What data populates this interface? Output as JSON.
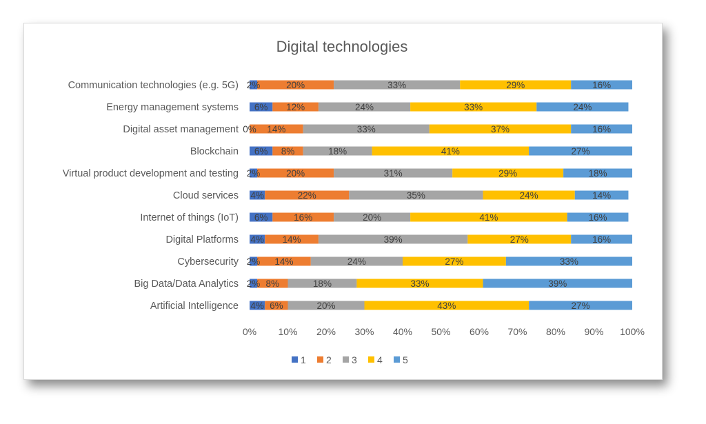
{
  "chart_data": {
    "type": "bar",
    "orientation": "horizontal",
    "stacked": "percent",
    "title": "Digital technologies",
    "categories": [
      "Communication technologies (e.g. 5G)",
      "Energy management systems",
      "Digital asset management",
      "Blockchain",
      "Virtual product development and testing",
      "Cloud services",
      "Internet of things (IoT)",
      "Digital Platforms",
      "Cybersecurity",
      "Big Data/Data Analytics",
      "Artificial Intelligence"
    ],
    "series": [
      {
        "name": "1",
        "color": "#4472c4",
        "values": [
          2,
          6,
          0,
          6,
          2,
          4,
          6,
          4,
          2,
          2,
          4
        ],
        "labels": [
          "2%",
          "6%",
          "0%",
          "6%",
          "2%",
          "4%",
          "6%",
          "4%",
          "2%",
          "2%",
          "4%"
        ]
      },
      {
        "name": "2",
        "color": "#ed7d31",
        "values": [
          20,
          12,
          14,
          8,
          20,
          22,
          16,
          14,
          14,
          8,
          6
        ],
        "labels": [
          "20%",
          "12%",
          "14%",
          "8%",
          "20%",
          "22%",
          "16%",
          "14%",
          "14%",
          "8%",
          "6%"
        ]
      },
      {
        "name": "3",
        "color": "#a5a5a5",
        "values": [
          33,
          24,
          33,
          18,
          31,
          35,
          20,
          39,
          24,
          18,
          20
        ],
        "labels": [
          "33%",
          "24%",
          "33%",
          "18%",
          "31%",
          "35%",
          "20%",
          "39%",
          "24%",
          "18%",
          "20%"
        ]
      },
      {
        "name": "4",
        "color": "#ffc000",
        "values": [
          29,
          33,
          37,
          41,
          29,
          24,
          41,
          27,
          27,
          33,
          43
        ],
        "labels": [
          "29%",
          "33%",
          "37%",
          "41%",
          "29%",
          "24%",
          "41%",
          "27%",
          "27%",
          "33%",
          "43%"
        ]
      },
      {
        "name": "5",
        "color": "#5b9bd5",
        "values": [
          16,
          24,
          16,
          27,
          18,
          14,
          16,
          16,
          33,
          39,
          27
        ],
        "labels": [
          "16%",
          "24%",
          "16%",
          "27%",
          "18%",
          "14%",
          "16%",
          "16%",
          "33%",
          "39%",
          "27%"
        ]
      }
    ],
    "x_ticks": [
      "0%",
      "10%",
      "20%",
      "30%",
      "40%",
      "50%",
      "60%",
      "70%",
      "80%",
      "90%",
      "100%"
    ],
    "xlim": [
      0,
      100
    ],
    "grid": false,
    "legend_position": "bottom"
  }
}
